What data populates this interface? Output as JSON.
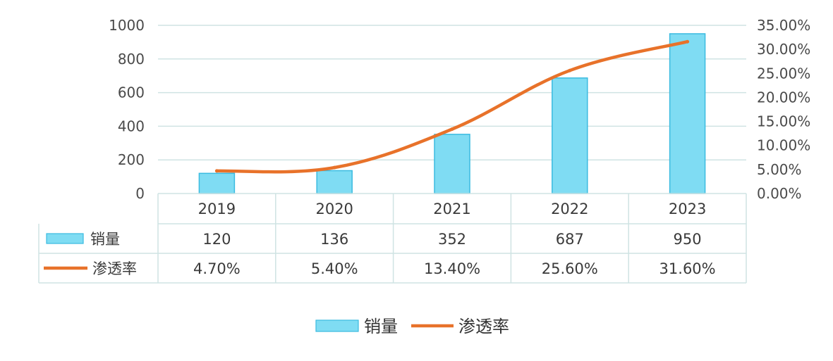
{
  "chart_data": {
    "type": "bar",
    "categories": [
      "2019",
      "2020",
      "2021",
      "2022",
      "2023"
    ],
    "series": [
      {
        "name": "销量",
        "type": "bar",
        "axis": "left",
        "values": [
          120,
          136,
          352,
          687,
          950
        ],
        "value_labels": [
          "120",
          "136",
          "352",
          "687",
          "950"
        ],
        "color": "#7fdcf3",
        "border_color": "#3bbbe0"
      },
      {
        "name": "渗透率",
        "type": "line",
        "axis": "right",
        "values": [
          4.7,
          5.4,
          13.4,
          25.6,
          31.6
        ],
        "value_labels": [
          "4.70%",
          "5.40%",
          "13.40%",
          "25.60%",
          "31.60%"
        ],
        "color": "#e8722a"
      }
    ],
    "y_left": {
      "ylim": [
        0,
        1000
      ],
      "ticks": [
        0,
        200,
        400,
        600,
        800,
        1000
      ],
      "tick_labels": [
        "0",
        "200",
        "400",
        "600",
        "800",
        "1000"
      ]
    },
    "y_right": {
      "ylim": [
        0,
        35
      ],
      "ticks": [
        0,
        5,
        10,
        15,
        20,
        25,
        30,
        35
      ],
      "tick_labels": [
        "0.00%",
        "5.00%",
        "10.00%",
        "15.00%",
        "20.00%",
        "25.00%",
        "30.00%",
        "35.00%"
      ]
    },
    "title": "",
    "xlabel": "",
    "ylabel": "",
    "grid": true,
    "data_table": true,
    "legend": {
      "position": "bottom",
      "entries": [
        "销量",
        "渗透率"
      ]
    }
  }
}
